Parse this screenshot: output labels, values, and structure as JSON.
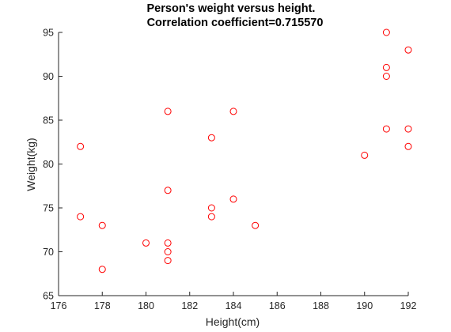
{
  "chart_data": {
    "type": "scatter",
    "title": [
      "Person's weight versus height.",
      "Correlation coefficient=0.715570"
    ],
    "xlabel": "Height(cm)",
    "ylabel": "Weight(kg)",
    "xlim": [
      176,
      192
    ],
    "ylim": [
      65,
      95
    ],
    "xticks": [
      176,
      178,
      180,
      182,
      184,
      186,
      188,
      190,
      192
    ],
    "yticks": [
      65,
      70,
      75,
      80,
      85,
      90,
      95
    ],
    "grid": false,
    "marker": "circle-open",
    "marker_color": "#ff0000",
    "axis_color": "#262626",
    "points": [
      {
        "x": 177,
        "y": 82
      },
      {
        "x": 177,
        "y": 74
      },
      {
        "x": 178,
        "y": 73
      },
      {
        "x": 178,
        "y": 68
      },
      {
        "x": 180,
        "y": 71
      },
      {
        "x": 181,
        "y": 86
      },
      {
        "x": 181,
        "y": 77
      },
      {
        "x": 181,
        "y": 71
      },
      {
        "x": 181,
        "y": 70
      },
      {
        "x": 181,
        "y": 69
      },
      {
        "x": 183,
        "y": 83
      },
      {
        "x": 183,
        "y": 75
      },
      {
        "x": 183,
        "y": 74
      },
      {
        "x": 184,
        "y": 86
      },
      {
        "x": 184,
        "y": 76
      },
      {
        "x": 185,
        "y": 73
      },
      {
        "x": 190,
        "y": 81
      },
      {
        "x": 191,
        "y": 95
      },
      {
        "x": 191,
        "y": 91
      },
      {
        "x": 191,
        "y": 90
      },
      {
        "x": 191,
        "y": 84
      },
      {
        "x": 192,
        "y": 93
      },
      {
        "x": 192,
        "y": 84
      },
      {
        "x": 192,
        "y": 82
      }
    ]
  }
}
